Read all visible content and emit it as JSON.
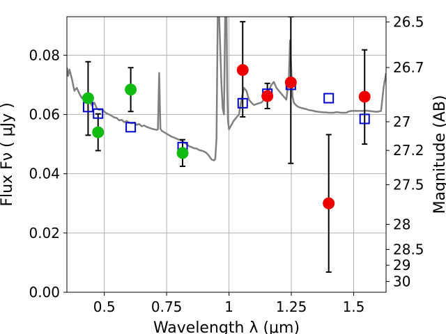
{
  "chart_data": {
    "type": "scatter",
    "title": "",
    "xlabel": "Wavelength  λ (μm)",
    "ylabel": "Flux  Fν  ( μJy )",
    "y2label": "Magnitude (AB)",
    "xlim": [
      0.35,
      1.63
    ],
    "ylim": [
      0.0,
      0.093
    ],
    "grid": true,
    "x_ticks": [
      0.5,
      0.75,
      1.0,
      1.25,
      1.5
    ],
    "x_tick_labels": [
      "0.5",
      "0.75",
      "1",
      "1.25",
      "1.5"
    ],
    "y_ticks": [
      0.0,
      0.02,
      0.04,
      0.06,
      0.08
    ],
    "y_tick_labels": [
      "0.00",
      "0.02",
      "0.04",
      "0.06",
      "0.08"
    ],
    "y2_tick_labels": [
      "26.5",
      "26.7",
      "27",
      "27.2",
      "27.5",
      "28",
      "28.5",
      "29",
      "30"
    ],
    "colors": {
      "model_line": "#808080",
      "green_points": "#11bb11",
      "red_points": "#ee0000",
      "model_boxes": "#0000cc",
      "error_bars": "#000000",
      "grid": "#b0b0b0"
    },
    "series": [
      {
        "marker": "circle",
        "color": "#11bb11",
        "points": [
          {
            "x": 0.435,
            "y": 0.0655,
            "yerr_lo": 0.053,
            "yerr_hi": 0.0778
          },
          {
            "x": 0.475,
            "y": 0.054,
            "yerr_lo": 0.0478,
            "yerr_hi": 0.0602
          },
          {
            "x": 0.606,
            "y": 0.0684,
            "yerr_lo": 0.061,
            "yerr_hi": 0.0758
          },
          {
            "x": 0.814,
            "y": 0.047,
            "yerr_lo": 0.0425,
            "yerr_hi": 0.0515
          }
        ]
      },
      {
        "marker": "circle",
        "color": "#ee0000",
        "points": [
          {
            "x": 1.055,
            "y": 0.075,
            "yerr_lo": 0.0592,
            "yerr_hi": 0.0913
          },
          {
            "x": 1.154,
            "y": 0.0662,
            "yerr_lo": 0.062,
            "yerr_hi": 0.0705
          },
          {
            "x": 1.248,
            "y": 0.0708,
            "yerr_lo": 0.0435,
            "yerr_hi": 0.093
          },
          {
            "x": 1.4,
            "y": 0.03,
            "yerr_lo": 0.0068,
            "yerr_hi": 0.0532
          },
          {
            "x": 1.544,
            "y": 0.066,
            "yerr_lo": 0.05,
            "yerr_hi": 0.0818
          }
        ]
      },
      {
        "marker": "open-square",
        "color": "#0000cc",
        "points": [
          {
            "x": 0.435,
            "y": 0.0625
          },
          {
            "x": 0.475,
            "y": 0.0603
          },
          {
            "x": 0.606,
            "y": 0.0557
          },
          {
            "x": 0.814,
            "y": 0.049
          },
          {
            "x": 1.055,
            "y": 0.0638
          },
          {
            "x": 1.154,
            "y": 0.067
          },
          {
            "x": 1.248,
            "y": 0.07
          },
          {
            "x": 1.4,
            "y": 0.0655
          },
          {
            "x": 1.544,
            "y": 0.0585
          }
        ]
      },
      {
        "marker": "line",
        "color": "#808080",
        "points": [
          [
            0.35,
            0.0758
          ],
          [
            0.355,
            0.073
          ],
          [
            0.36,
            0.0752
          ],
          [
            0.37,
            0.072
          ],
          [
            0.38,
            0.068
          ],
          [
            0.39,
            0.069
          ],
          [
            0.4,
            0.067
          ],
          [
            0.41,
            0.0655
          ],
          [
            0.42,
            0.0665
          ],
          [
            0.43,
            0.064
          ],
          [
            0.44,
            0.065
          ],
          [
            0.45,
            0.063
          ],
          [
            0.46,
            0.064
          ],
          [
            0.47,
            0.062
          ],
          [
            0.48,
            0.0615
          ],
          [
            0.49,
            0.0618
          ],
          [
            0.5,
            0.061
          ],
          [
            0.51,
            0.0603
          ],
          [
            0.52,
            0.06
          ],
          [
            0.53,
            0.0595
          ],
          [
            0.54,
            0.059
          ],
          [
            0.55,
            0.0588
          ],
          [
            0.56,
            0.058
          ],
          [
            0.57,
            0.0582
          ],
          [
            0.58,
            0.0574
          ],
          [
            0.59,
            0.0578
          ],
          [
            0.6,
            0.0572
          ],
          [
            0.61,
            0.057
          ],
          [
            0.62,
            0.0572
          ],
          [
            0.63,
            0.0565
          ],
          [
            0.64,
            0.0568
          ],
          [
            0.65,
            0.056
          ],
          [
            0.66,
            0.0563
          ],
          [
            0.67,
            0.0558
          ],
          [
            0.68,
            0.0555
          ],
          [
            0.69,
            0.0552
          ],
          [
            0.7,
            0.055
          ],
          [
            0.71,
            0.0548
          ],
          [
            0.715,
            0.055
          ],
          [
            0.72,
            0.074
          ],
          [
            0.725,
            0.0552
          ],
          [
            0.73,
            0.0545
          ],
          [
            0.74,
            0.054
          ],
          [
            0.75,
            0.0535
          ],
          [
            0.76,
            0.053
          ],
          [
            0.77,
            0.0525
          ],
          [
            0.78,
            0.0522
          ],
          [
            0.79,
            0.0518
          ],
          [
            0.8,
            0.0515
          ],
          [
            0.81,
            0.0512
          ],
          [
            0.82,
            0.0505
          ],
          [
            0.83,
            0.05
          ],
          [
            0.84,
            0.0493
          ],
          [
            0.85,
            0.049
          ],
          [
            0.86,
            0.0486
          ],
          [
            0.87,
            0.0485
          ],
          [
            0.88,
            0.048
          ],
          [
            0.89,
            0.0478
          ],
          [
            0.9,
            0.0475
          ],
          [
            0.91,
            0.047
          ],
          [
            0.92,
            0.046
          ],
          [
            0.93,
            0.0448
          ],
          [
            0.94,
            0.0445
          ],
          [
            0.945,
            0.045
          ],
          [
            0.95,
            0.052
          ],
          [
            0.955,
            0.095
          ],
          [
            0.96,
            0.095
          ],
          [
            0.965,
            0.082
          ],
          [
            0.97,
            0.07
          ],
          [
            0.975,
            0.062
          ],
          [
            0.98,
            0.06
          ],
          [
            0.985,
            0.095
          ],
          [
            0.99,
            0.095
          ],
          [
            0.993,
            0.068
          ],
          [
            0.996,
            0.058
          ],
          [
            1.0,
            0.055
          ],
          [
            1.01,
            0.0565
          ],
          [
            1.02,
            0.058
          ],
          [
            1.03,
            0.059
          ],
          [
            1.04,
            0.06
          ],
          [
            1.05,
            0.065
          ],
          [
            1.06,
            0.069
          ],
          [
            1.07,
            0.068
          ],
          [
            1.08,
            0.065
          ],
          [
            1.09,
            0.064
          ],
          [
            1.1,
            0.0632
          ],
          [
            1.11,
            0.0635
          ],
          [
            1.12,
            0.0638
          ],
          [
            1.13,
            0.064
          ],
          [
            1.14,
            0.065
          ],
          [
            1.15,
            0.066
          ],
          [
            1.16,
            0.068
          ],
          [
            1.17,
            0.07
          ],
          [
            1.18,
            0.071
          ],
          [
            1.19,
            0.069
          ],
          [
            1.2,
            0.068
          ],
          [
            1.21,
            0.067
          ],
          [
            1.22,
            0.066
          ],
          [
            1.23,
            0.065
          ],
          [
            1.24,
            0.072
          ],
          [
            1.245,
            0.085
          ],
          [
            1.25,
            0.075
          ],
          [
            1.255,
            0.066
          ],
          [
            1.26,
            0.064
          ],
          [
            1.27,
            0.063
          ],
          [
            1.28,
            0.0625
          ],
          [
            1.29,
            0.0622
          ],
          [
            1.3,
            0.062
          ],
          [
            1.31,
            0.0618
          ],
          [
            1.32,
            0.0615
          ],
          [
            1.33,
            0.0614
          ],
          [
            1.34,
            0.0612
          ],
          [
            1.35,
            0.061
          ],
          [
            1.36,
            0.0609
          ],
          [
            1.37,
            0.0608
          ],
          [
            1.38,
            0.0607
          ],
          [
            1.39,
            0.0607
          ],
          [
            1.4,
            0.0606
          ],
          [
            1.41,
            0.0606
          ],
          [
            1.42,
            0.0606
          ],
          [
            1.43,
            0.0608
          ],
          [
            1.44,
            0.0607
          ],
          [
            1.45,
            0.0606
          ],
          [
            1.46,
            0.0606
          ],
          [
            1.47,
            0.0606
          ],
          [
            1.48,
            0.061
          ],
          [
            1.49,
            0.0612
          ],
          [
            1.5,
            0.0612
          ],
          [
            1.51,
            0.0612
          ],
          [
            1.52,
            0.0612
          ],
          [
            1.53,
            0.0612
          ],
          [
            1.54,
            0.0612
          ],
          [
            1.55,
            0.0613
          ],
          [
            1.56,
            0.0612
          ],
          [
            1.57,
            0.0611
          ],
          [
            1.58,
            0.061
          ],
          [
            1.59,
            0.0609
          ],
          [
            1.6,
            0.061
          ],
          [
            1.61,
            0.0612
          ],
          [
            1.62,
            0.069
          ],
          [
            1.63,
            0.074
          ]
        ]
      }
    ]
  }
}
